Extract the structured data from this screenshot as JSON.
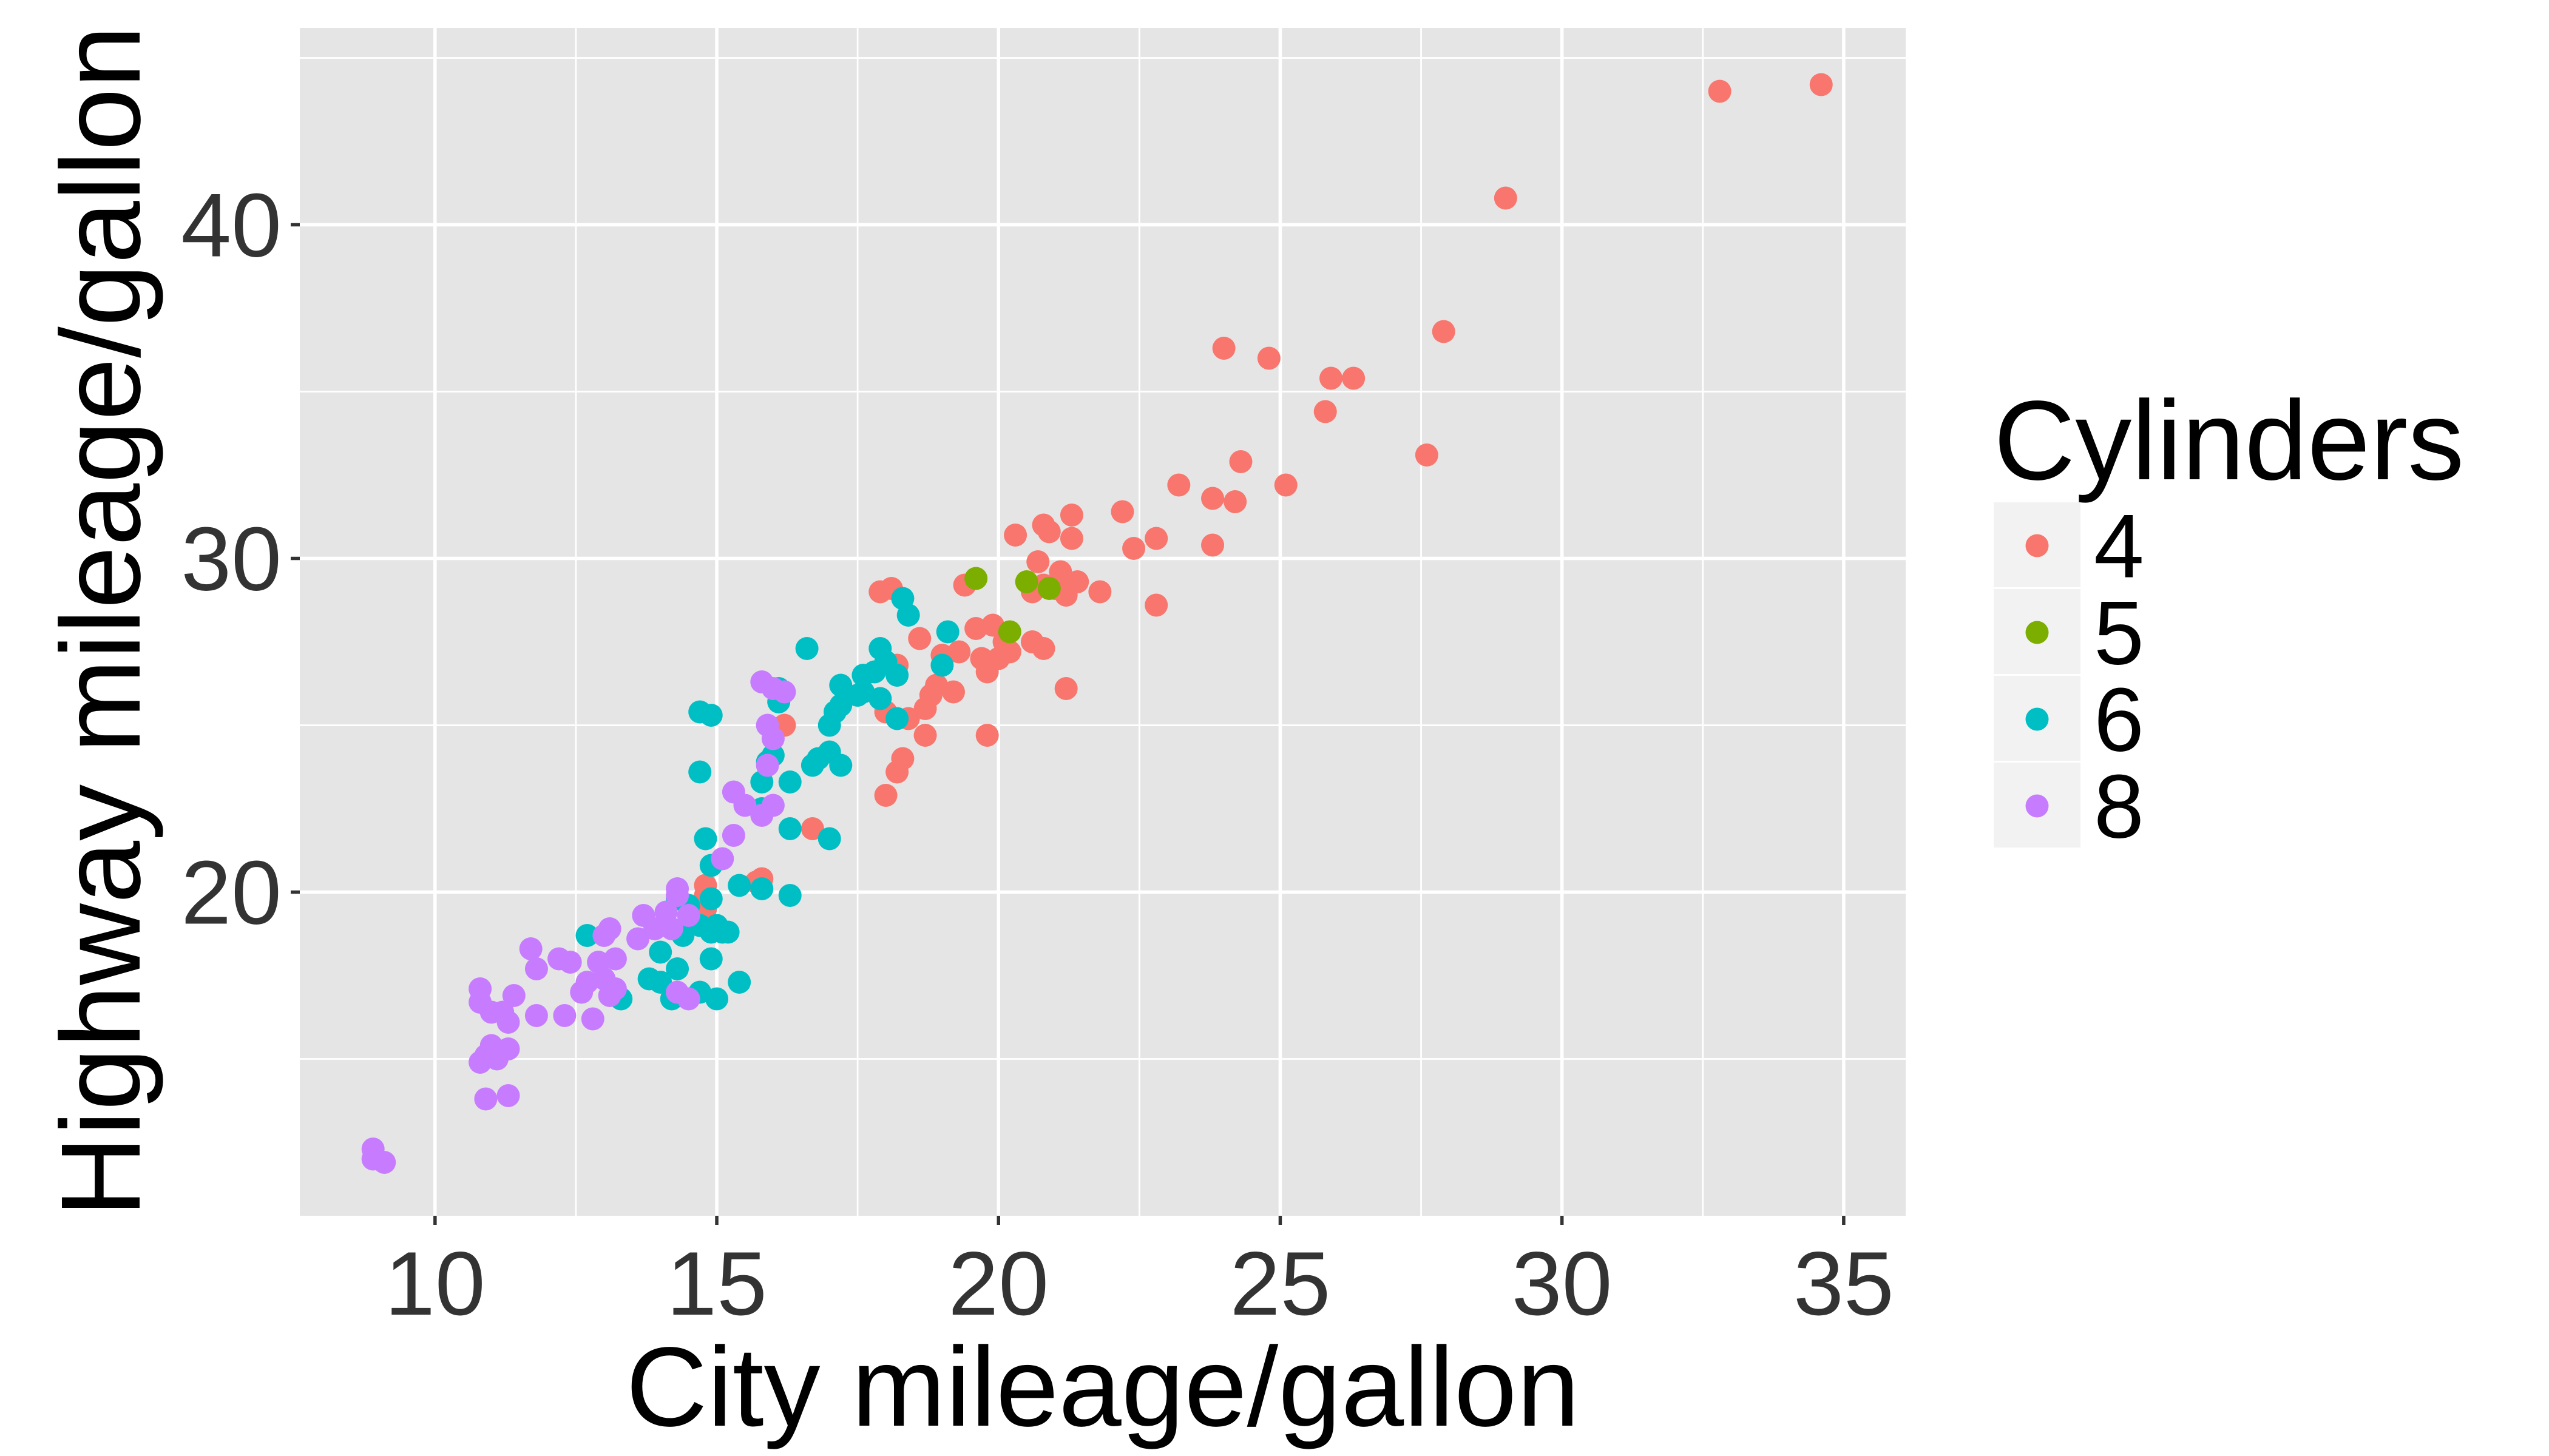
{
  "chart_data": {
    "type": "scatter",
    "xlabel": "City mileage/gallon",
    "ylabel": "Highway mileage/gallon",
    "xlim": [
      7.6,
      36.1
    ],
    "ylim": [
      10.3,
      45.9
    ],
    "xticks": [
      "10",
      "15",
      "20",
      "25",
      "30",
      "35"
    ],
    "xtick_values": [
      10,
      15,
      20,
      25,
      30,
      35
    ],
    "yticks": [
      "20",
      "30",
      "40"
    ],
    "ytick_values": [
      20,
      30,
      40
    ],
    "x_minor_values": [
      12.5,
      17.5,
      22.5,
      27.5,
      32.5
    ],
    "y_minor_values": [
      15,
      25,
      35,
      45
    ],
    "grid": true,
    "legend": {
      "title": "Cylinders",
      "placement": "right"
    },
    "series": [
      {
        "name": "4",
        "color": "#F8766D",
        "points": [
          [
            34.6,
            44.2
          ],
          [
            32.8,
            44.0
          ],
          [
            29.0,
            40.8
          ],
          [
            27.9,
            36.8
          ],
          [
            27.6,
            33.1
          ],
          [
            26.3,
            35.4
          ],
          [
            25.9,
            35.4
          ],
          [
            25.8,
            34.4
          ],
          [
            24.8,
            36.0
          ],
          [
            24.3,
            32.9
          ],
          [
            24.0,
            36.3
          ],
          [
            24.2,
            31.7
          ],
          [
            25.1,
            32.2
          ],
          [
            23.8,
            31.8
          ],
          [
            23.8,
            30.4
          ],
          [
            23.2,
            32.2
          ],
          [
            22.8,
            30.6
          ],
          [
            22.4,
            30.3
          ],
          [
            22.2,
            31.4
          ],
          [
            22.8,
            28.6
          ],
          [
            21.8,
            29.0
          ],
          [
            21.3,
            31.3
          ],
          [
            21.3,
            30.6
          ],
          [
            21.4,
            29.3
          ],
          [
            21.1,
            29.6
          ],
          [
            21.0,
            29.1
          ],
          [
            20.8,
            29.2
          ],
          [
            20.7,
            29.9
          ],
          [
            20.8,
            31.0
          ],
          [
            20.9,
            30.8
          ],
          [
            20.6,
            29.0
          ],
          [
            20.8,
            27.3
          ],
          [
            20.6,
            27.5
          ],
          [
            20.3,
            30.7
          ],
          [
            21.2,
            26.1
          ],
          [
            21.2,
            28.9
          ],
          [
            20.1,
            27.5
          ],
          [
            20.0,
            27.0
          ],
          [
            19.9,
            28.0
          ],
          [
            19.8,
            26.6
          ],
          [
            19.7,
            27.0
          ],
          [
            19.6,
            27.9
          ],
          [
            19.4,
            29.2
          ],
          [
            19.3,
            27.2
          ],
          [
            19.2,
            26.0
          ],
          [
            19.0,
            27.1
          ],
          [
            18.9,
            26.2
          ],
          [
            18.8,
            25.9
          ],
          [
            18.7,
            25.5
          ],
          [
            18.7,
            24.7
          ],
          [
            18.6,
            27.6
          ],
          [
            18.4,
            25.2
          ],
          [
            18.3,
            24.0
          ],
          [
            18.2,
            23.6
          ],
          [
            18.0,
            22.9
          ],
          [
            17.9,
            29.0
          ],
          [
            18.1,
            29.1
          ],
          [
            18.2,
            26.8
          ],
          [
            17.9,
            25.8
          ],
          [
            18.0,
            25.4
          ],
          [
            19.8,
            24.7
          ],
          [
            16.2,
            25.0
          ],
          [
            16.7,
            21.9
          ],
          [
            15.8,
            20.4
          ],
          [
            15.7,
            20.3
          ],
          [
            14.8,
            20.2
          ],
          [
            14.8,
            19.9
          ],
          [
            14.8,
            19.5
          ],
          [
            14.7,
            19.3
          ],
          [
            14.6,
            19.2
          ],
          [
            20.2,
            27.2
          ],
          [
            21.2,
            29.0
          ]
        ]
      },
      {
        "name": "5",
        "color": "#7CAE00",
        "points": [
          [
            19.6,
            29.4
          ],
          [
            20.2,
            27.8
          ],
          [
            20.9,
            29.1
          ],
          [
            20.5,
            29.3
          ]
        ]
      },
      {
        "name": "6",
        "color": "#00BFC4",
        "points": [
          [
            19.1,
            27.8
          ],
          [
            19.0,
            26.8
          ],
          [
            18.4,
            28.3
          ],
          [
            18.3,
            28.8
          ],
          [
            18.2,
            26.5
          ],
          [
            18.0,
            26.9
          ],
          [
            17.9,
            27.3
          ],
          [
            17.8,
            26.6
          ],
          [
            17.6,
            26.5
          ],
          [
            17.5,
            25.9
          ],
          [
            18.2,
            25.2
          ],
          [
            17.9,
            25.8
          ],
          [
            17.6,
            26.0
          ],
          [
            17.2,
            26.2
          ],
          [
            17.2,
            25.6
          ],
          [
            17.1,
            25.4
          ],
          [
            17.0,
            25.0
          ],
          [
            17.0,
            24.2
          ],
          [
            16.8,
            24.0
          ],
          [
            16.7,
            23.8
          ],
          [
            17.2,
            23.8
          ],
          [
            16.6,
            27.3
          ],
          [
            16.3,
            23.3
          ],
          [
            16.1,
            26.1
          ],
          [
            16.1,
            25.7
          ],
          [
            16.0,
            24.1
          ],
          [
            15.9,
            23.9
          ],
          [
            15.8,
            23.3
          ],
          [
            15.8,
            22.5
          ],
          [
            16.3,
            21.9
          ],
          [
            17.0,
            21.6
          ],
          [
            16.3,
            19.9
          ],
          [
            15.8,
            20.1
          ],
          [
            15.4,
            20.2
          ],
          [
            14.9,
            25.3
          ],
          [
            14.7,
            25.4
          ],
          [
            14.7,
            23.6
          ],
          [
            14.8,
            21.6
          ],
          [
            14.9,
            20.8
          ],
          [
            14.9,
            19.8
          ],
          [
            15.0,
            19.0
          ],
          [
            15.1,
            18.8
          ],
          [
            15.2,
            18.8
          ],
          [
            14.9,
            18.8
          ],
          [
            14.7,
            19.0
          ],
          [
            14.5,
            19.6
          ],
          [
            14.3,
            19.8
          ],
          [
            14.4,
            18.7
          ],
          [
            14.0,
            18.2
          ],
          [
            14.9,
            18.0
          ],
          [
            14.3,
            17.7
          ],
          [
            14.0,
            17.3
          ],
          [
            13.8,
            17.4
          ],
          [
            14.2,
            16.8
          ],
          [
            14.7,
            17.0
          ],
          [
            15.0,
            16.8
          ],
          [
            15.4,
            17.3
          ],
          [
            13.3,
            16.8
          ],
          [
            12.7,
            18.7
          ]
        ]
      },
      {
        "name": "8",
        "color": "#C77CFF",
        "points": [
          [
            15.8,
            26.3
          ],
          [
            16.2,
            26.0
          ],
          [
            16.0,
            26.1
          ],
          [
            15.9,
            25.0
          ],
          [
            16.0,
            24.6
          ],
          [
            15.9,
            23.8
          ],
          [
            15.5,
            22.6
          ],
          [
            16.0,
            22.6
          ],
          [
            15.8,
            22.3
          ],
          [
            15.3,
            23.0
          ],
          [
            15.3,
            21.7
          ],
          [
            15.1,
            21.0
          ],
          [
            14.3,
            20.1
          ],
          [
            14.3,
            19.9
          ],
          [
            14.1,
            19.4
          ],
          [
            13.9,
            18.9
          ],
          [
            13.7,
            19.3
          ],
          [
            13.6,
            18.6
          ],
          [
            14.2,
            18.9
          ],
          [
            14.5,
            19.3
          ],
          [
            13.1,
            18.9
          ],
          [
            13.0,
            18.7
          ],
          [
            13.2,
            18.0
          ],
          [
            12.9,
            17.9
          ],
          [
            12.4,
            17.9
          ],
          [
            12.2,
            18.0
          ],
          [
            11.7,
            18.3
          ],
          [
            11.8,
            17.7
          ],
          [
            13.0,
            17.4
          ],
          [
            13.2,
            17.1
          ],
          [
            13.1,
            16.9
          ],
          [
            12.7,
            17.3
          ],
          [
            12.6,
            17.0
          ],
          [
            12.8,
            16.2
          ],
          [
            12.3,
            16.3
          ],
          [
            11.8,
            16.3
          ],
          [
            11.4,
            16.9
          ],
          [
            11.2,
            16.4
          ],
          [
            11.3,
            16.1
          ],
          [
            11.0,
            16.4
          ],
          [
            10.8,
            16.7
          ],
          [
            10.8,
            17.1
          ],
          [
            11.0,
            15.4
          ],
          [
            11.3,
            15.3
          ],
          [
            11.1,
            15.0
          ],
          [
            10.9,
            15.1
          ],
          [
            10.8,
            14.9
          ],
          [
            10.9,
            13.8
          ],
          [
            11.3,
            13.9
          ],
          [
            14.3,
            17.0
          ],
          [
            14.5,
            16.8
          ],
          [
            8.9,
            12.3
          ],
          [
            8.9,
            12.0
          ],
          [
            9.1,
            11.9
          ]
        ]
      }
    ]
  }
}
